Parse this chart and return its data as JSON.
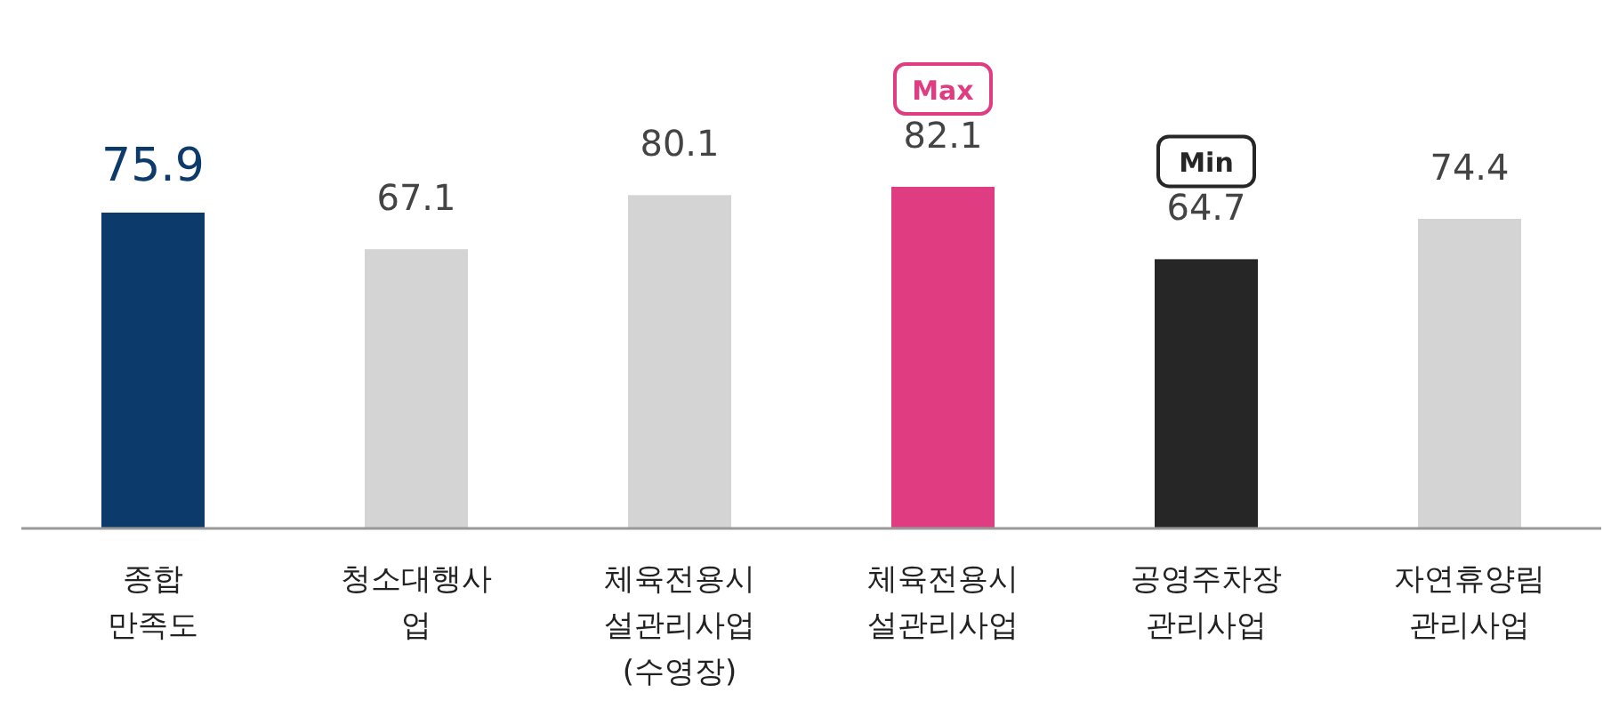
{
  "chart_data": {
    "type": "bar",
    "categories": [
      "종합\n만족도",
      "청소대행사\n업",
      "체육전용시\n설관리사업\n(수영장)",
      "체육전용시\n설관리사업",
      "공영주차장\n관리사업",
      "자연휴양림\n관리사업"
    ],
    "values": [
      75.9,
      67.1,
      80.1,
      82.1,
      64.7,
      74.4
    ],
    "colors": [
      "#0b3a6b",
      "#d4d4d4",
      "#d4d4d4",
      "#e03c82",
      "#262626",
      "#d4d4d4"
    ],
    "data_labels": true,
    "annotations": [
      "Max",
      "Min"
    ]
  }
}
